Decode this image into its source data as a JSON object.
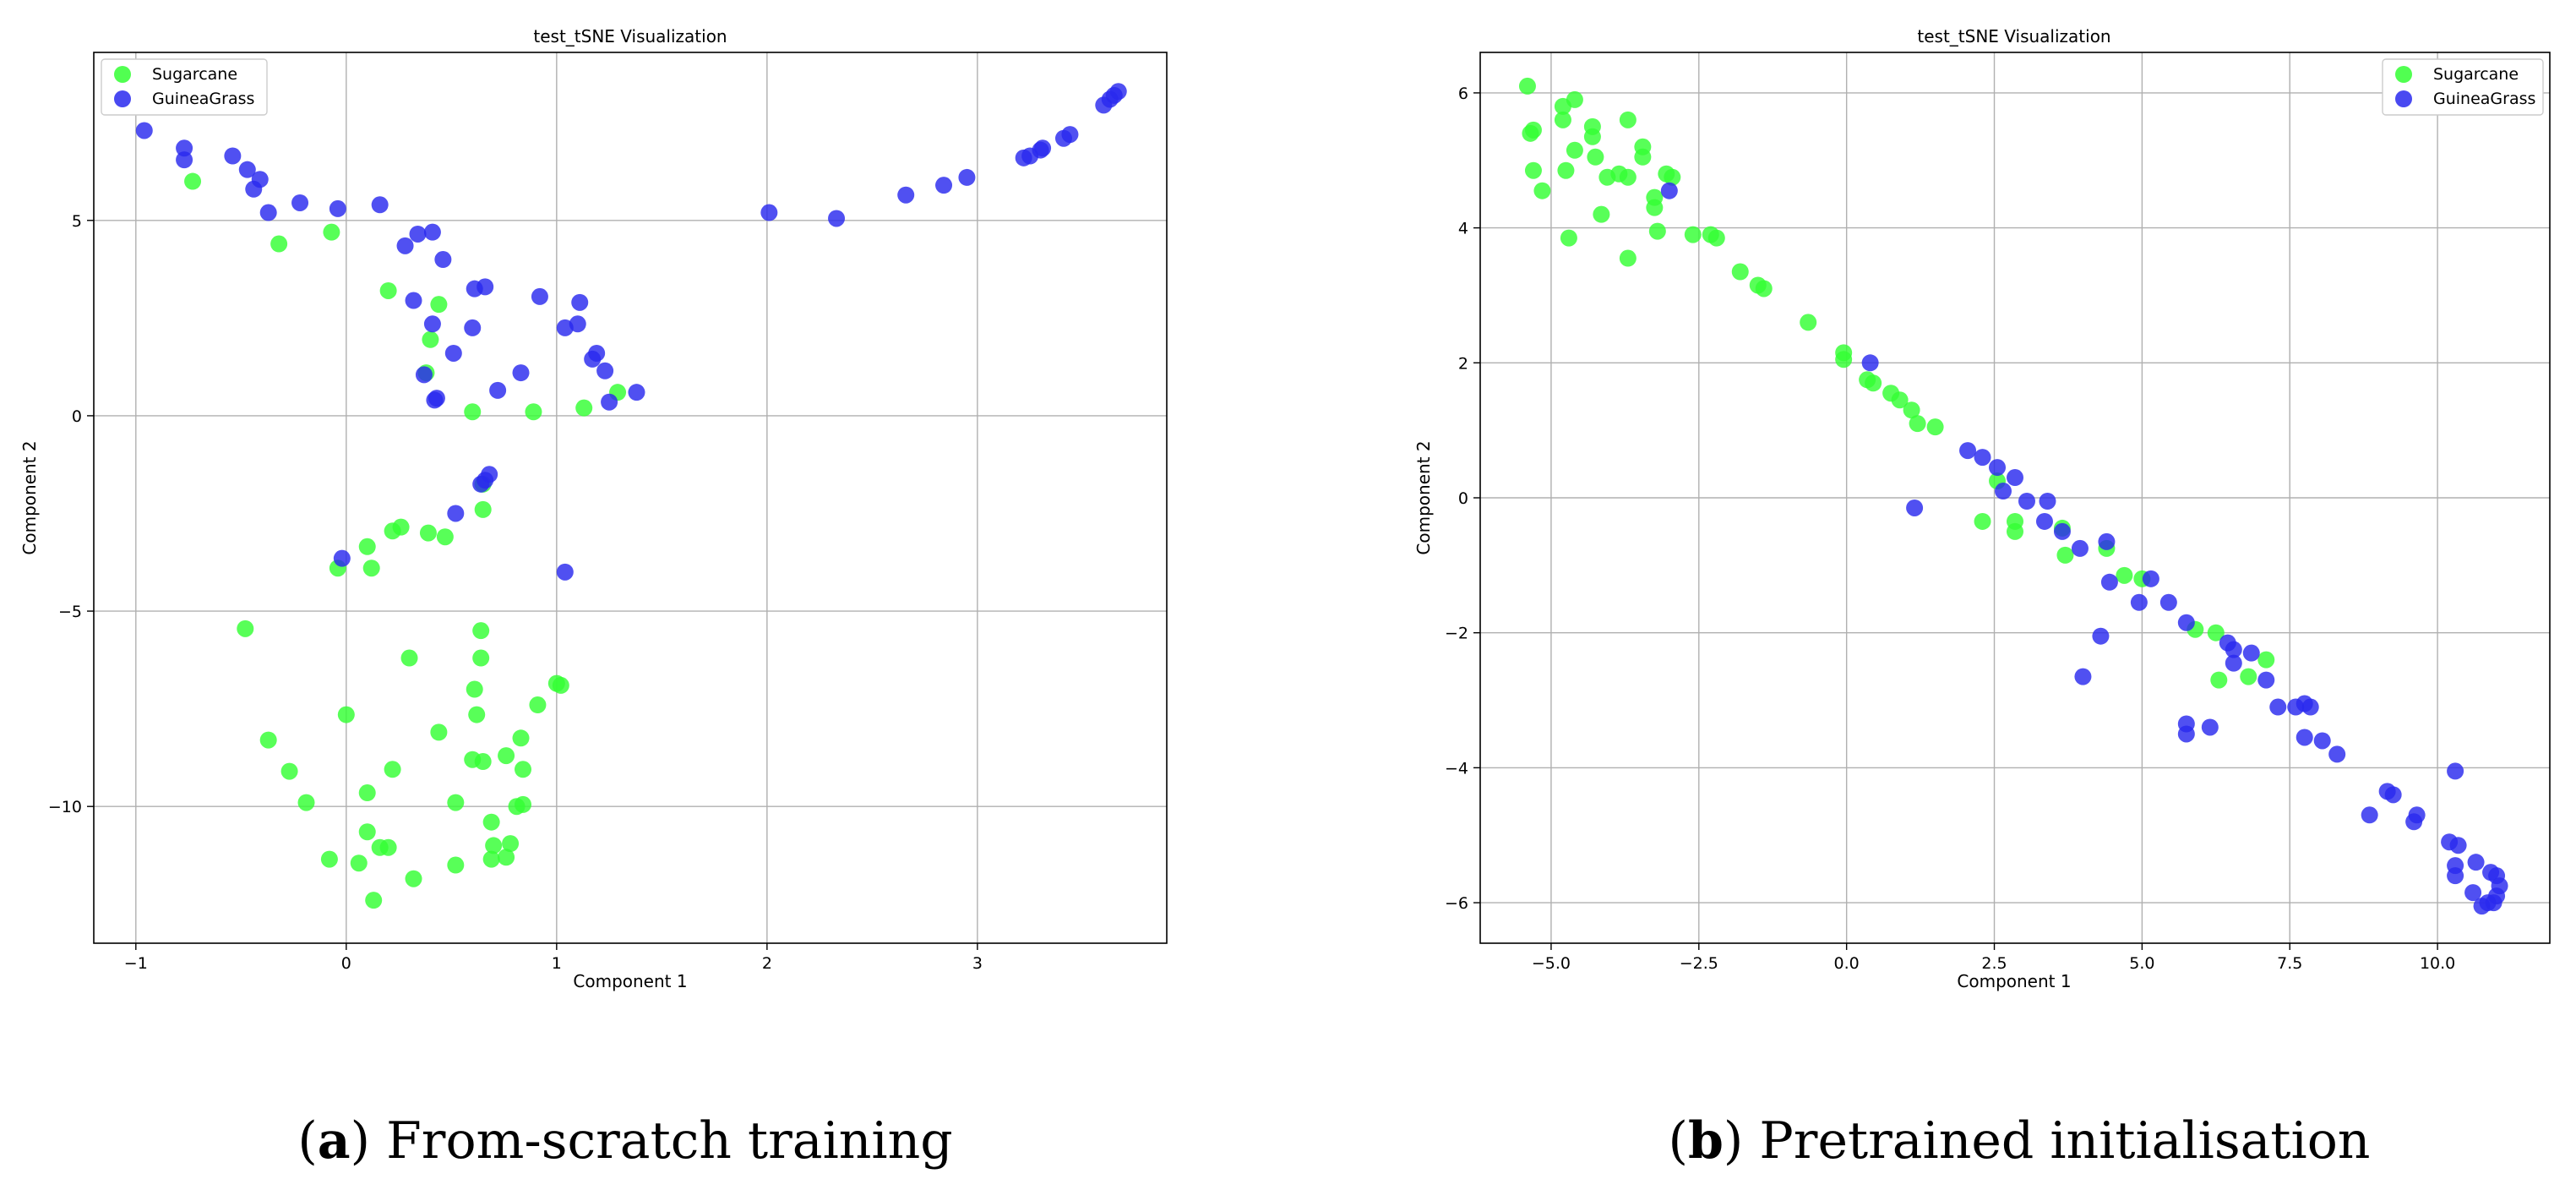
{
  "colors": {
    "sugarcane": "#33ff33",
    "guineagrass": "#2929ee",
    "grid": "#b0b0b0"
  },
  "captions": [
    {
      "letter": "a",
      "text": "From-scratch training"
    },
    {
      "letter": "b",
      "text": "Pretrained initialisation"
    }
  ],
  "chart_data": [
    {
      "type": "scatter",
      "title": "test_tSNE Visualization",
      "xlabel": "Component 1",
      "ylabel": "Component 2",
      "xlim": [
        -1.2,
        3.9
      ],
      "ylim": [
        -13.5,
        9.3
      ],
      "xticks": [
        -1,
        0,
        1,
        2,
        3
      ],
      "xtick_labels": [
        "−1",
        "0",
        "1",
        "2",
        "3"
      ],
      "yticks": [
        5,
        0,
        -5,
        -10
      ],
      "ytick_labels": [
        "5",
        "0",
        "−5",
        "−10"
      ],
      "grid": true,
      "legend_position": "top-left",
      "series": [
        {
          "name": "Sugarcane",
          "color": "#33ff33",
          "points": [
            [
              -0.73,
              6.0
            ],
            [
              -0.32,
              4.4
            ],
            [
              -0.07,
              4.7
            ],
            [
              0.2,
              3.2
            ],
            [
              0.44,
              2.85
            ],
            [
              0.4,
              1.95
            ],
            [
              0.38,
              1.1
            ],
            [
              0.6,
              0.1
            ],
            [
              0.89,
              0.1
            ],
            [
              1.13,
              0.2
            ],
            [
              1.29,
              0.6
            ],
            [
              0.65,
              -1.75
            ],
            [
              0.65,
              -2.4
            ],
            [
              0.26,
              -2.85
            ],
            [
              0.22,
              -2.95
            ],
            [
              0.39,
              -3.0
            ],
            [
              0.47,
              -3.1
            ],
            [
              0.1,
              -3.35
            ],
            [
              0.12,
              -3.9
            ],
            [
              -0.04,
              -3.9
            ],
            [
              -0.48,
              -5.45
            ],
            [
              0.64,
              -5.5
            ],
            [
              0.3,
              -6.2
            ],
            [
              0.64,
              -6.2
            ],
            [
              1.0,
              -6.85
            ],
            [
              1.02,
              -6.9
            ],
            [
              0.61,
              -7.0
            ],
            [
              0.91,
              -7.4
            ],
            [
              0.0,
              -7.65
            ],
            [
              0.62,
              -7.65
            ],
            [
              -0.37,
              -8.3
            ],
            [
              0.44,
              -8.1
            ],
            [
              0.83,
              -8.25
            ],
            [
              0.6,
              -8.8
            ],
            [
              0.65,
              -8.85
            ],
            [
              0.76,
              -8.7
            ],
            [
              -0.27,
              -9.1
            ],
            [
              0.22,
              -9.05
            ],
            [
              0.84,
              -9.05
            ],
            [
              0.1,
              -9.65
            ],
            [
              -0.19,
              -9.9
            ],
            [
              0.52,
              -9.9
            ],
            [
              0.81,
              -10.0
            ],
            [
              0.84,
              -9.95
            ],
            [
              0.69,
              -10.4
            ],
            [
              0.1,
              -10.65
            ],
            [
              0.7,
              -11.0
            ],
            [
              0.78,
              -10.95
            ],
            [
              0.16,
              -11.05
            ],
            [
              0.2,
              -11.05
            ],
            [
              -0.08,
              -11.35
            ],
            [
              0.06,
              -11.45
            ],
            [
              0.69,
              -11.35
            ],
            [
              0.76,
              -11.3
            ],
            [
              0.52,
              -11.5
            ],
            [
              0.32,
              -11.85
            ],
            [
              0.13,
              -12.4
            ]
          ]
        },
        {
          "name": "GuineaGrass",
          "color": "#2929ee",
          "points": [
            [
              -0.96,
              7.3
            ],
            [
              -0.77,
              6.85
            ],
            [
              -0.77,
              6.55
            ],
            [
              -0.54,
              6.65
            ],
            [
              -0.47,
              6.3
            ],
            [
              -0.44,
              5.8
            ],
            [
              -0.41,
              6.05
            ],
            [
              -0.37,
              5.2
            ],
            [
              -0.22,
              5.45
            ],
            [
              -0.04,
              5.3
            ],
            [
              0.16,
              5.4
            ],
            [
              0.34,
              4.65
            ],
            [
              0.28,
              4.35
            ],
            [
              0.41,
              4.7
            ],
            [
              0.46,
              4.0
            ],
            [
              0.32,
              2.95
            ],
            [
              0.61,
              3.25
            ],
            [
              0.66,
              3.3
            ],
            [
              0.92,
              3.05
            ],
            [
              1.11,
              2.9
            ],
            [
              0.41,
              2.35
            ],
            [
              0.6,
              2.25
            ],
            [
              1.04,
              2.25
            ],
            [
              1.1,
              2.35
            ],
            [
              0.51,
              1.6
            ],
            [
              1.19,
              1.6
            ],
            [
              1.17,
              1.45
            ],
            [
              1.23,
              1.15
            ],
            [
              0.37,
              1.05
            ],
            [
              0.83,
              1.1
            ],
            [
              0.72,
              0.65
            ],
            [
              0.43,
              0.45
            ],
            [
              0.42,
              0.4
            ],
            [
              1.38,
              0.6
            ],
            [
              1.25,
              0.35
            ],
            [
              0.68,
              -1.5
            ],
            [
              0.66,
              -1.65
            ],
            [
              0.64,
              -1.75
            ],
            [
              0.52,
              -2.5
            ],
            [
              -0.02,
              -3.65
            ],
            [
              1.04,
              -4.0
            ],
            [
              2.01,
              5.2
            ],
            [
              2.33,
              5.05
            ],
            [
              2.66,
              5.65
            ],
            [
              2.84,
              5.9
            ],
            [
              2.95,
              6.1
            ],
            [
              3.22,
              6.6
            ],
            [
              3.25,
              6.65
            ],
            [
              3.31,
              6.85
            ],
            [
              3.3,
              6.8
            ],
            [
              3.41,
              7.1
            ],
            [
              3.44,
              7.2
            ],
            [
              3.6,
              7.95
            ],
            [
              3.63,
              8.1
            ],
            [
              3.65,
              8.2
            ],
            [
              3.67,
              8.3
            ]
          ]
        }
      ]
    },
    {
      "type": "scatter",
      "title": "test_tSNE Visualization",
      "xlabel": "Component 1",
      "ylabel": "Component 2",
      "xlim": [
        -6.2,
        11.9
      ],
      "ylim": [
        -6.6,
        6.6
      ],
      "xticks": [
        -5,
        -2.5,
        0,
        2.5,
        5,
        7.5,
        10
      ],
      "xtick_labels": [
        "−5.0",
        "−2.5",
        "0.0",
        "2.5",
        "5.0",
        "7.5",
        "10.0"
      ],
      "yticks": [
        6,
        4,
        2,
        0,
        -2,
        -4,
        -6
      ],
      "ytick_labels": [
        "6",
        "4",
        "2",
        "0",
        "−2",
        "−4",
        "−6"
      ],
      "grid": true,
      "legend_position": "top-right",
      "series": [
        {
          "name": "Sugarcane",
          "color": "#33ff33",
          "points": [
            [
              -5.4,
              6.1
            ],
            [
              -5.3,
              5.45
            ],
            [
              -5.35,
              5.4
            ],
            [
              -5.3,
              4.85
            ],
            [
              -5.15,
              4.55
            ],
            [
              -4.8,
              5.8
            ],
            [
              -4.6,
              5.9
            ],
            [
              -4.8,
              5.6
            ],
            [
              -4.75,
              4.85
            ],
            [
              -4.6,
              5.15
            ],
            [
              -4.3,
              5.5
            ],
            [
              -4.3,
              5.35
            ],
            [
              -4.25,
              5.05
            ],
            [
              -4.05,
              4.75
            ],
            [
              -3.85,
              4.8
            ],
            [
              -3.7,
              4.75
            ],
            [
              -3.7,
              5.6
            ],
            [
              -3.45,
              5.2
            ],
            [
              -3.45,
              5.05
            ],
            [
              -3.25,
              4.45
            ],
            [
              -3.25,
              4.3
            ],
            [
              -3.05,
              4.8
            ],
            [
              -2.95,
              4.75
            ],
            [
              -4.7,
              3.85
            ],
            [
              -4.15,
              4.2
            ],
            [
              -3.2,
              3.95
            ],
            [
              -3.7,
              3.55
            ],
            [
              -2.6,
              3.9
            ],
            [
              -2.3,
              3.9
            ],
            [
              -2.2,
              3.85
            ],
            [
              -1.8,
              3.35
            ],
            [
              -1.5,
              3.15
            ],
            [
              -1.4,
              3.1
            ],
            [
              -0.65,
              2.6
            ],
            [
              -0.05,
              2.15
            ],
            [
              -0.05,
              2.05
            ],
            [
              0.35,
              1.75
            ],
            [
              0.45,
              1.7
            ],
            [
              0.75,
              1.55
            ],
            [
              0.9,
              1.45
            ],
            [
              1.1,
              1.3
            ],
            [
              1.2,
              1.1
            ],
            [
              1.5,
              1.05
            ],
            [
              2.3,
              -0.35
            ],
            [
              2.55,
              0.25
            ],
            [
              2.85,
              -0.35
            ],
            [
              2.85,
              -0.5
            ],
            [
              3.65,
              -0.45
            ],
            [
              3.7,
              -0.85
            ],
            [
              4.4,
              -0.75
            ],
            [
              4.7,
              -1.15
            ],
            [
              5.0,
              -1.2
            ],
            [
              5.9,
              -1.95
            ],
            [
              6.25,
              -2.0
            ],
            [
              6.3,
              -2.7
            ],
            [
              6.8,
              -2.65
            ],
            [
              7.1,
              -2.4
            ]
          ]
        },
        {
          "name": "GuineaGrass",
          "color": "#2929ee",
          "points": [
            [
              -3.0,
              4.55
            ],
            [
              0.4,
              2.0
            ],
            [
              1.15,
              -0.15
            ],
            [
              2.05,
              0.7
            ],
            [
              2.3,
              0.6
            ],
            [
              2.55,
              0.45
            ],
            [
              2.65,
              0.1
            ],
            [
              2.85,
              0.3
            ],
            [
              3.05,
              -0.05
            ],
            [
              3.4,
              -0.05
            ],
            [
              3.35,
              -0.35
            ],
            [
              3.65,
              -0.5
            ],
            [
              3.95,
              -0.75
            ],
            [
              4.4,
              -0.65
            ],
            [
              4.45,
              -1.25
            ],
            [
              4.0,
              -2.65
            ],
            [
              4.3,
              -2.05
            ],
            [
              4.95,
              -1.55
            ],
            [
              5.15,
              -1.2
            ],
            [
              5.45,
              -1.55
            ],
            [
              5.75,
              -1.85
            ],
            [
              5.75,
              -3.35
            ],
            [
              5.75,
              -3.5
            ],
            [
              6.15,
              -3.4
            ],
            [
              6.45,
              -2.15
            ],
            [
              6.55,
              -2.25
            ],
            [
              6.55,
              -2.45
            ],
            [
              6.85,
              -2.3
            ],
            [
              7.1,
              -2.7
            ],
            [
              7.3,
              -3.1
            ],
            [
              7.6,
              -3.1
            ],
            [
              7.75,
              -3.05
            ],
            [
              7.85,
              -3.1
            ],
            [
              7.75,
              -3.55
            ],
            [
              8.05,
              -3.6
            ],
            [
              8.3,
              -3.8
            ],
            [
              8.85,
              -4.7
            ],
            [
              9.15,
              -4.35
            ],
            [
              9.25,
              -4.4
            ],
            [
              9.6,
              -4.8
            ],
            [
              9.65,
              -4.7
            ],
            [
              10.2,
              -5.1
            ],
            [
              10.3,
              -4.05
            ],
            [
              10.35,
              -5.15
            ],
            [
              10.3,
              -5.45
            ],
            [
              10.3,
              -5.6
            ],
            [
              10.6,
              -5.85
            ],
            [
              10.65,
              -5.4
            ],
            [
              10.75,
              -6.05
            ],
            [
              10.85,
              -6.0
            ],
            [
              11.0,
              -5.9
            ],
            [
              11.0,
              -5.6
            ],
            [
              11.05,
              -5.75
            ],
            [
              10.9,
              -5.55
            ],
            [
              10.95,
              -6.0
            ]
          ]
        }
      ]
    }
  ]
}
